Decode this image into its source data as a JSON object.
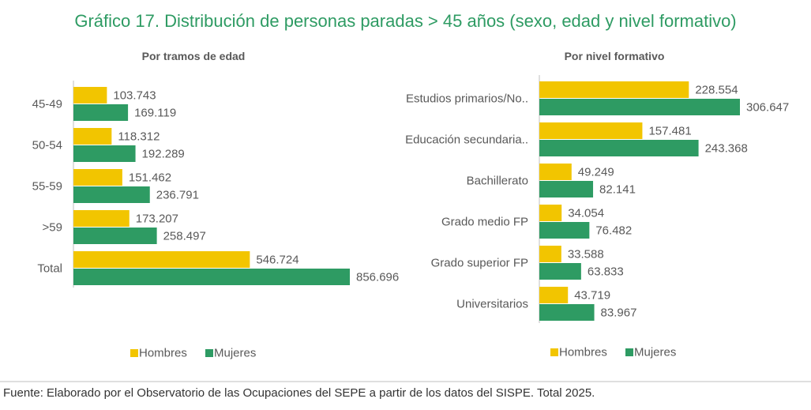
{
  "title": "Gráfico 17. Distribución de personas paradas > 45 años (sexo, edad y nivel formativo)",
  "source": "Fuente: Elaborado por el Observatorio de las Ocupaciones del SEPE a partir de los datos del SISPE. Total 2025.",
  "chart_data": [
    {
      "type": "bar",
      "orientation": "horizontal",
      "title": "Por tramos de edad",
      "legend": "bottom",
      "categories": [
        "45-49",
        "50-54",
        "55-59",
        ">59",
        "Total"
      ],
      "series": [
        {
          "name": "Hombres",
          "color": "#f2c500",
          "values": [
            103743,
            118312,
            151462,
            173207,
            546724
          ],
          "value_labels": [
            "103.743",
            "118.312",
            "151.462",
            "173.207",
            "546.724"
          ]
        },
        {
          "name": "Mujeres",
          "color": "#2e9b63",
          "values": [
            169119,
            192289,
            236791,
            258497,
            856696
          ],
          "value_labels": [
            "169.119",
            "192.289",
            "236.791",
            "258.497",
            "856.696"
          ]
        }
      ]
    },
    {
      "type": "bar",
      "orientation": "horizontal",
      "title": "Por nivel formativo",
      "legend": "bottom",
      "categories": [
        "Estudios primarios/No..",
        "Educación secundaria..",
        "Bachillerato",
        "Grado medio FP",
        "Grado superior FP",
        "Universitarios"
      ],
      "series": [
        {
          "name": "Hombres",
          "color": "#f2c500",
          "values": [
            228554,
            157481,
            49249,
            34054,
            33588,
            43719
          ],
          "value_labels": [
            "228.554",
            "157.481",
            "49.249",
            "34.054",
            "33.588",
            "43.719"
          ]
        },
        {
          "name": "Mujeres",
          "color": "#2e9b63",
          "values": [
            306647,
            243368,
            82141,
            76482,
            63833,
            83967
          ],
          "value_labels": [
            "306.647",
            "243.368",
            "82.141",
            "76.482",
            "63.833",
            "83.967"
          ]
        }
      ]
    }
  ]
}
